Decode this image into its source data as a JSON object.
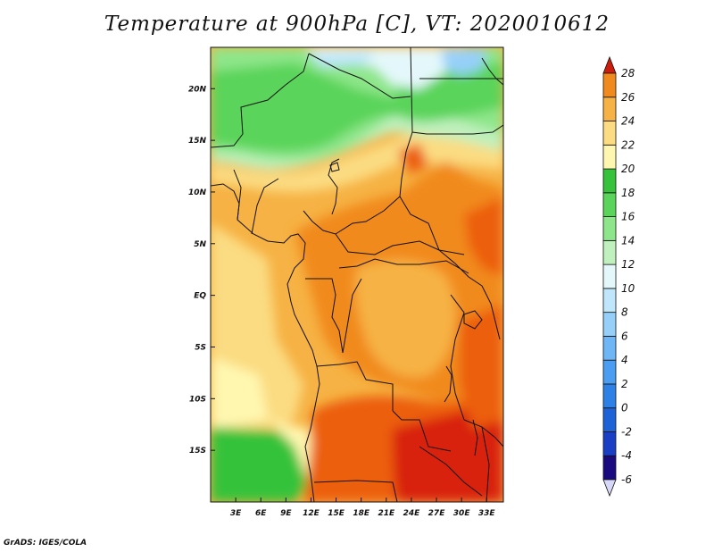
{
  "title": "Temperature at 900hPa [C], VT: 2020010612",
  "credit": "GrADS: IGES/COLA",
  "map": {
    "lon_range": [
      0,
      35
    ],
    "lat_range": [
      -20,
      24
    ],
    "x_ticks": [
      {
        "value": 3,
        "label": "3E"
      },
      {
        "value": 6,
        "label": "6E"
      },
      {
        "value": 9,
        "label": "9E"
      },
      {
        "value": 12,
        "label": "12E"
      },
      {
        "value": 15,
        "label": "15E"
      },
      {
        "value": 18,
        "label": "18E"
      },
      {
        "value": 21,
        "label": "21E"
      },
      {
        "value": 24,
        "label": "24E"
      },
      {
        "value": 27,
        "label": "27E"
      },
      {
        "value": 30,
        "label": "30E"
      },
      {
        "value": 33,
        "label": "33E"
      }
    ],
    "y_ticks": [
      {
        "value": 20,
        "label": "20N"
      },
      {
        "value": 15,
        "label": "15N"
      },
      {
        "value": 10,
        "label": "10N"
      },
      {
        "value": 5,
        "label": "5N"
      },
      {
        "value": 0,
        "label": "EQ"
      },
      {
        "value": -5,
        "label": "5S"
      },
      {
        "value": -10,
        "label": "10S"
      },
      {
        "value": -15,
        "label": "15S"
      }
    ]
  },
  "colorbar": {
    "levels": [
      "-6",
      "-4",
      "-2",
      "0",
      "2",
      "4",
      "6",
      "8",
      "10",
      "12",
      "14",
      "16",
      "18",
      "20",
      "22",
      "24",
      "26",
      "28"
    ],
    "colors": [
      "#1a0a80",
      "#1a3fc4",
      "#1e62d8",
      "#2d80e6",
      "#4a9df0",
      "#6fb6f6",
      "#96d0f9",
      "#bfe6fb",
      "#e4f8fb",
      "#bff0bd",
      "#8ee68a",
      "#5ad45a",
      "#36c23a",
      "#fff7b0",
      "#fbdc82",
      "#f6b244",
      "#f18a1e",
      "#ec5e10",
      "#d8230c"
    ],
    "under_color": "#d7d7f7",
    "over_color": "#cc1d0c"
  }
}
